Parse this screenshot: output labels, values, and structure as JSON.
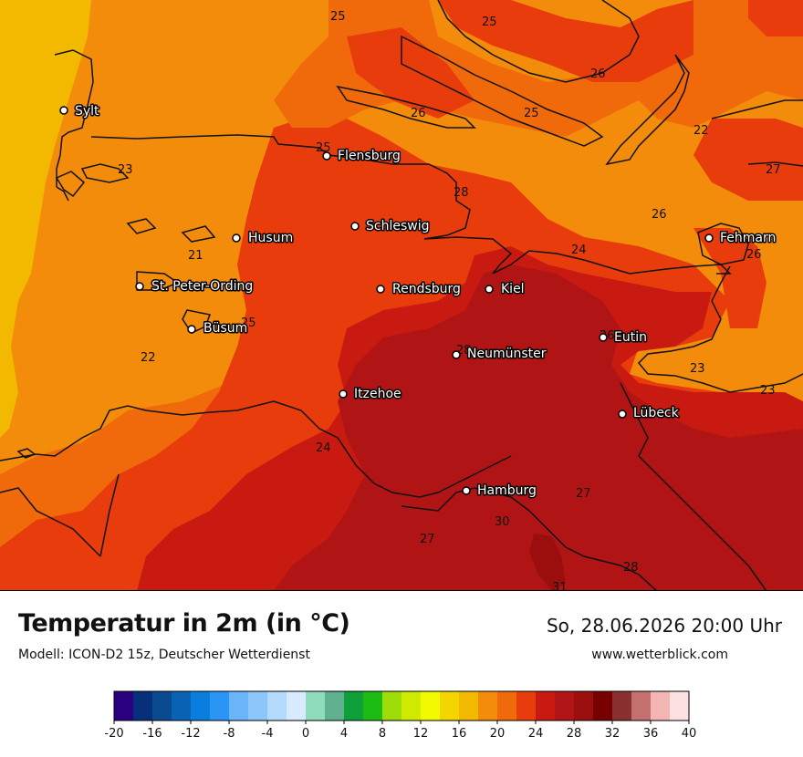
{
  "title": "Temperatur in 2m (in °C)",
  "subtitle": "Modell: ICON-D2 15z, Deutscher Wetterdienst",
  "datetime": "So, 28.06.2026 20:00 Uhr",
  "website": "www.wetterblick.com",
  "legend": {
    "ticks": [
      "-20",
      "-16",
      "-12",
      "-8",
      "-4",
      "0",
      "4",
      "8",
      "12",
      "16",
      "20",
      "24",
      "28",
      "32",
      "36",
      "40"
    ],
    "colors": [
      "#2b0080",
      "#08307a",
      "#0a4a8f",
      "#0a62b4",
      "#0a7ede",
      "#2a95f5",
      "#6ab4fa",
      "#8cc6fb",
      "#b4dafd",
      "#d8eafe",
      "#8fdcbc",
      "#5fb08f",
      "#0e9e3a",
      "#1cbc14",
      "#9ddc06",
      "#cdea00",
      "#f2fa00",
      "#f3d600",
      "#f3b800",
      "#f38c0a",
      "#f06a0c",
      "#e83c0c",
      "#c81a10",
      "#b01414",
      "#9a0e0e",
      "#780000",
      "#8a3030",
      "#c47070",
      "#f3b4b4",
      "#fde0e0"
    ]
  },
  "map": {
    "colors": {
      "t22": "#f3b800",
      "t23": "#f38c0a",
      "t24": "#f06a0c",
      "t25": "#f06a0c",
      "t26": "#e83c0c",
      "t28": "#c81a10",
      "t30": "#b01414",
      "t31": "#9a0e0e",
      "coast": "#111111"
    },
    "cities": [
      {
        "name": "Sylt"
      },
      {
        "name": "Flensburg"
      },
      {
        "name": "Schleswig"
      },
      {
        "name": "Husum"
      },
      {
        "name": "St. Peter-Ording"
      },
      {
        "name": "Rendsburg"
      },
      {
        "name": "Kiel"
      },
      {
        "name": "Büsum"
      },
      {
        "name": "Eutin"
      },
      {
        "name": "Neumünster"
      },
      {
        "name": "Itzehoe"
      },
      {
        "name": "Lübeck"
      },
      {
        "name": "Fehmarn"
      },
      {
        "name": "Hamburg"
      }
    ],
    "isotherm_labels": [
      "25",
      "25",
      "26",
      "26",
      "25",
      "22",
      "27",
      "23",
      "25",
      "28",
      "26",
      "24",
      "26",
      "23",
      "21",
      "25",
      "22",
      "23",
      "23",
      "24",
      "27",
      "30",
      "27",
      "28",
      "31",
      "26",
      "28",
      "26"
    ]
  }
}
